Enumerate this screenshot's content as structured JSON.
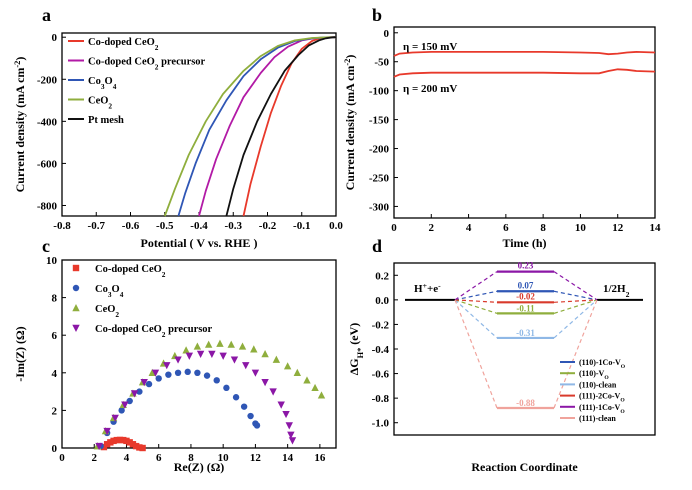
{
  "chart_data": [
    {
      "panel": "a",
      "type": "line",
      "xlabel": "Potential ( V vs. RHE )",
      "ylabel": "Current density (mA cm⁻²)",
      "xlim": [
        -0.8,
        0.0
      ],
      "ylim": [
        -850,
        20
      ],
      "xticks": [
        -0.8,
        -0.7,
        -0.6,
        -0.5,
        -0.4,
        -0.3,
        -0.2,
        -0.1,
        0.0
      ],
      "xtick_labels": [
        "-0.8",
        "-0.7",
        "-0.6",
        "-0.5",
        "-0.4",
        "-0.3",
        "-0.2",
        "-0.1",
        "0.0"
      ],
      "yticks": [
        0,
        -200,
        -400,
        -600,
        -800
      ],
      "ytick_labels": [
        "0",
        "-200",
        "-400",
        "-600",
        "-800"
      ],
      "legend_position": "top-left",
      "series": [
        {
          "name": "Co-doped CeO₂",
          "color": "#e8392b",
          "x": [
            -0.27,
            -0.25,
            -0.22,
            -0.19,
            -0.16,
            -0.13,
            -0.1,
            -0.07,
            -0.05,
            -0.03,
            0.0
          ],
          "y": [
            -850,
            -700,
            -520,
            -360,
            -230,
            -125,
            -55,
            -18,
            -6,
            -1,
            0
          ]
        },
        {
          "name": "Co-doped CeO₂ precursor",
          "color": "#b21aa6",
          "x": [
            -0.4,
            -0.38,
            -0.35,
            -0.31,
            -0.27,
            -0.22,
            -0.18,
            -0.14,
            -0.1,
            -0.06,
            -0.02,
            0.0
          ],
          "y": [
            -850,
            -730,
            -580,
            -420,
            -285,
            -170,
            -95,
            -45,
            -15,
            -4,
            -1,
            0
          ]
        },
        {
          "name": "Co₃O₄",
          "color": "#2f56b5",
          "x": [
            -0.46,
            -0.44,
            -0.41,
            -0.37,
            -0.32,
            -0.27,
            -0.22,
            -0.17,
            -0.12,
            -0.07,
            -0.03,
            0.0
          ],
          "y": [
            -850,
            -740,
            -600,
            -440,
            -300,
            -185,
            -105,
            -50,
            -18,
            -5,
            -1,
            0
          ]
        },
        {
          "name": "CeO₂",
          "color": "#8fae3d",
          "x": [
            -0.5,
            -0.47,
            -0.43,
            -0.38,
            -0.33,
            -0.27,
            -0.22,
            -0.17,
            -0.12,
            -0.07,
            -0.03,
            0.0
          ],
          "y": [
            -850,
            -720,
            -560,
            -400,
            -270,
            -160,
            -90,
            -42,
            -15,
            -4,
            -1,
            0
          ]
        },
        {
          "name": "Pt mesh",
          "color": "#111111",
          "x": [
            -0.32,
            -0.3,
            -0.27,
            -0.23,
            -0.19,
            -0.15,
            -0.11,
            -0.08,
            -0.05,
            -0.03,
            -0.01,
            0.0
          ],
          "y": [
            -850,
            -720,
            -560,
            -400,
            -270,
            -160,
            -85,
            -40,
            -15,
            -5,
            -1,
            0
          ]
        }
      ]
    },
    {
      "panel": "b",
      "type": "line",
      "xlabel": "Time (h)",
      "ylabel": "Current density (mA cm⁻²)",
      "xlim": [
        0,
        14
      ],
      "ylim": [
        -320,
        10
      ],
      "xticks": [
        0,
        2,
        4,
        6,
        8,
        10,
        12,
        14
      ],
      "xtick_labels": [
        "0",
        "2",
        "4",
        "6",
        "8",
        "10",
        "12",
        "14"
      ],
      "yticks": [
        0,
        -50,
        -100,
        -150,
        -200,
        -250,
        -300
      ],
      "ytick_labels": [
        "0",
        "-50",
        "-100",
        "-150",
        "-200",
        "-250",
        "-300"
      ],
      "annotations": [
        "η = 150 mV",
        "η = 200 mV"
      ],
      "series": [
        {
          "name": "η = 150 mV",
          "color": "#e8392b",
          "x": [
            0,
            0.3,
            1,
            2,
            4,
            6,
            8,
            10,
            11,
            11.5,
            12,
            12.5,
            13,
            14
          ],
          "y": [
            -40,
            -36,
            -34,
            -33,
            -33,
            -33,
            -33,
            -34,
            -35,
            -37,
            -36,
            -34,
            -33,
            -34
          ]
        },
        {
          "name": "η = 200 mV",
          "color": "#e8392b",
          "x": [
            0,
            0.3,
            1,
            2,
            4,
            6,
            8,
            10,
            11,
            11.5,
            12,
            12.5,
            13,
            14
          ],
          "y": [
            -76,
            -72,
            -70,
            -69,
            -69,
            -69,
            -69,
            -70,
            -70,
            -66,
            -63,
            -64,
            -66,
            -67
          ]
        }
      ]
    },
    {
      "panel": "c",
      "type": "scatter",
      "xlabel": "Re(Z) (Ω)",
      "ylabel": "-Im(Z) (Ω)",
      "xlim": [
        0,
        17
      ],
      "ylim": [
        0,
        10
      ],
      "xticks": [
        0,
        2,
        4,
        6,
        8,
        10,
        12,
        14,
        16
      ],
      "xtick_labels": [
        "0",
        "2",
        "4",
        "6",
        "8",
        "10",
        "12",
        "14",
        "16"
      ],
      "yticks": [
        0,
        2,
        4,
        6,
        8,
        10
      ],
      "ytick_labels": [
        "0",
        "2",
        "4",
        "6",
        "8",
        "10"
      ],
      "legend_position": "top-left",
      "series": [
        {
          "name": "Co-doped CeO₂",
          "color": "#e8392b",
          "marker": "square",
          "x": [
            2.6,
            2.8,
            3.0,
            3.2,
            3.4,
            3.6,
            3.8,
            4.0,
            4.2,
            4.4,
            4.6,
            4.8,
            5.0
          ],
          "y": [
            0.05,
            0.2,
            0.3,
            0.38,
            0.42,
            0.43,
            0.42,
            0.38,
            0.3,
            0.2,
            0.1,
            0.03,
            0.0
          ]
        },
        {
          "name": "Co₃O₄",
          "color": "#2f56b5",
          "marker": "circle",
          "x": [
            2.4,
            2.8,
            3.2,
            3.7,
            4.2,
            4.8,
            5.4,
            6.0,
            6.6,
            7.2,
            7.8,
            8.4,
            9.0,
            9.6,
            10.2,
            10.8,
            11.3,
            11.7,
            12.0,
            12.1
          ],
          "y": [
            0.1,
            0.8,
            1.4,
            2.0,
            2.5,
            3.0,
            3.4,
            3.7,
            3.9,
            4.0,
            4.05,
            4.0,
            3.85,
            3.6,
            3.2,
            2.7,
            2.2,
            1.7,
            1.3,
            1.2
          ]
        },
        {
          "name": "CeO₂",
          "color": "#8fae3d",
          "marker": "triangle-up",
          "x": [
            2.2,
            2.7,
            3.2,
            3.8,
            4.4,
            5.0,
            5.6,
            6.3,
            7.0,
            7.7,
            8.4,
            9.1,
            9.8,
            10.5,
            11.2,
            11.9,
            12.6,
            13.3,
            14.0,
            14.6,
            15.2,
            15.7,
            16.1
          ],
          "y": [
            0.1,
            0.9,
            1.6,
            2.3,
            2.9,
            3.5,
            4.0,
            4.5,
            4.9,
            5.2,
            5.4,
            5.5,
            5.55,
            5.5,
            5.4,
            5.25,
            5.0,
            4.7,
            4.35,
            4.0,
            3.6,
            3.2,
            2.8
          ]
        },
        {
          "name": "Co-doped CeO₂ precursor",
          "color": "#8b17a6",
          "marker": "triangle-down",
          "x": [
            2.3,
            2.8,
            3.3,
            3.9,
            4.5,
            5.1,
            5.8,
            6.5,
            7.2,
            7.9,
            8.6,
            9.3,
            10.0,
            10.7,
            11.4,
            12.0,
            12.6,
            13.1,
            13.6,
            13.9,
            14.1,
            14.2,
            14.3
          ],
          "y": [
            0.1,
            0.9,
            1.6,
            2.3,
            2.9,
            3.5,
            4.0,
            4.4,
            4.7,
            4.9,
            5.0,
            5.0,
            4.9,
            4.7,
            4.4,
            4.0,
            3.5,
            3.0,
            2.3,
            1.8,
            1.2,
            0.7,
            0.4
          ]
        }
      ]
    },
    {
      "panel": "d",
      "type": "line",
      "xlabel": "Reaction Coordinate",
      "ylabel": "ΔG_H* (eV)",
      "ylim": [
        -1.1,
        0.3
      ],
      "yticks": [
        0.2,
        0.0,
        -0.2,
        -0.4,
        -0.6,
        -0.8,
        -1.0
      ],
      "ytick_labels": [
        "0.2",
        "0.0",
        "-0.2",
        "-0.4",
        "-0.6",
        "-0.8",
        "-1.0"
      ],
      "start_label": "H⁺+e⁻",
      "end_label": "1/2H₂",
      "legend_position": "bottom-right",
      "series": [
        {
          "name": "(110)-1Co-V_O",
          "color": "#2f56b5",
          "value": 0.07,
          "label": "0.07"
        },
        {
          "name": "(110)-V_O",
          "color": "#8fae3d",
          "value": -0.11,
          "label": "-0.11"
        },
        {
          "name": "(110)-clean",
          "color": "#8fb8e6",
          "value": -0.31,
          "label": "-0.31"
        },
        {
          "name": "(111)-2Co-V_O",
          "color": "#d93a2b",
          "value": -0.02,
          "label": "-0.02"
        },
        {
          "name": "(111)-1Co-V_O",
          "color": "#8b17a6",
          "value": 0.23,
          "label": "0.23"
        },
        {
          "name": "(111)-clean",
          "color": "#f0a39c",
          "value": -0.88,
          "label": "-0.88"
        }
      ]
    }
  ],
  "panel_letters": [
    "a",
    "b",
    "c",
    "d"
  ]
}
